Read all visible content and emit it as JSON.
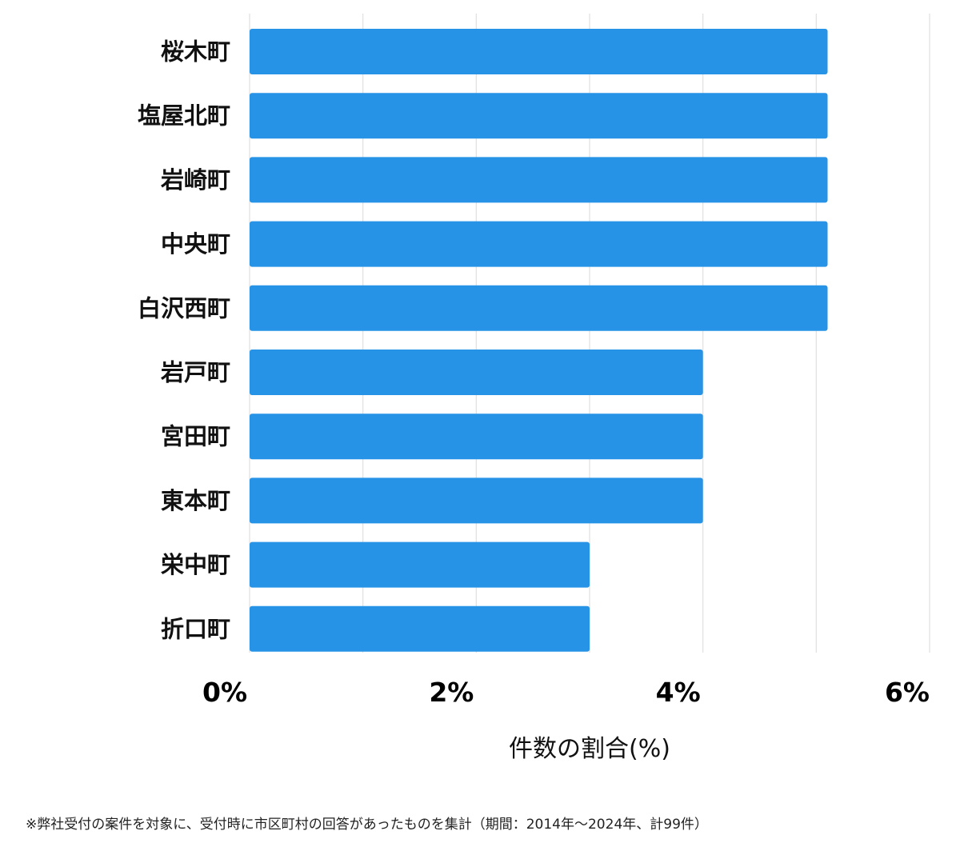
{
  "chart_data": {
    "type": "bar",
    "orientation": "horizontal",
    "categories": [
      "桜木町",
      "塩屋北町",
      "岩崎町",
      "中央町",
      "白沢西町",
      "岩戸町",
      "宮田町",
      "東本町",
      "栄中町",
      "折口町"
    ],
    "values": [
      5.1,
      5.1,
      5.1,
      5.1,
      5.1,
      4.0,
      4.0,
      4.0,
      3.0,
      3.0
    ],
    "xlim": [
      0,
      6
    ],
    "ticks": [
      0,
      2,
      4,
      6
    ],
    "tick_labels": [
      "0%",
      "2%",
      "4%",
      "6%"
    ],
    "xlabel": "件数の割合(%)",
    "grid": true,
    "bar_color": "#2693e6",
    "grid_color": "#e0e0e0"
  },
  "footnote": "※弊社受付の案件を対象に、受付時に市区町村の回答があったものを集計（期間：2014年〜2024年、計99件）"
}
